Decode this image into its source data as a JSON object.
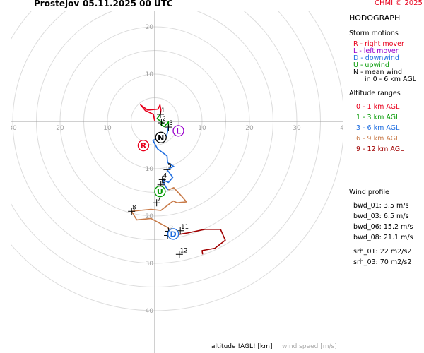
{
  "header": {
    "station": "Prostejov",
    "datetime": "05.11.2025 00 UTC",
    "copyright": "CHMI © 2025"
  },
  "legend": {
    "title": "HODOGRAPH",
    "storm_motions_title": "Storm motions",
    "storm_motions": [
      {
        "text": "R - right mover",
        "color": "#e8001c"
      },
      {
        "text": "L - left mover",
        "color": "#9900cc"
      },
      {
        "text": "D - downwind",
        "color": "#1f6ee0"
      },
      {
        "text": "U - upwind",
        "color": "#009900"
      },
      {
        "text": "N - mean wind",
        "color": "#000000"
      },
      {
        "text": "in 0 - 6 km AGL",
        "color": "#000000"
      }
    ],
    "altitude_title": "Altitude ranges",
    "altitude_ranges": [
      {
        "text": "0 - 1 km AGL",
        "color": "#e8001c"
      },
      {
        "text": "1 - 3 km AGL",
        "color": "#009900"
      },
      {
        "text": "3 - 6 km AGL",
        "color": "#1f6ee0"
      },
      {
        "text": "6 - 9 km AGL",
        "color": "#c87a48"
      },
      {
        "text": "9 - 12 km AGL",
        "color": "#a00000"
      }
    ],
    "wind_profile_title": "Wind profile",
    "wind_profile": [
      "bwd_01: 3.5 m/s",
      "bwd_03: 6.5 m/s",
      "bwd_06: 15.2 m/s",
      "bwd_08: 21.1 m/s",
      "srh_01: 22 m2/s2",
      "srh_03: 70 m2/s2"
    ]
  },
  "footer": {
    "altitude_label": "altitude !AGL! [km]",
    "wind_speed_label": "wind speed [m/s]"
  },
  "chart_data": {
    "type": "line",
    "title": "HODOGRAPH",
    "ring_spacing": 5,
    "max_ring": 40,
    "ring_labels_positive": [
      "10",
      "20"
    ],
    "ring_labels_negative": [
      "10",
      "20",
      "30",
      "40"
    ],
    "x_axis_labels": [
      "40",
      "30",
      "20",
      "10",
      "10",
      "20",
      "30",
      "40"
    ],
    "series": [
      {
        "range": "0 - 1 km AGL",
        "color": "#e8001c",
        "points": [
          [
            0,
            0
          ],
          [
            -0.3,
            1.5
          ],
          [
            -2.0,
            2.3
          ],
          [
            -3.0,
            3.5
          ],
          [
            -1.5,
            2.4
          ],
          [
            0.7,
            2.6
          ],
          [
            1.1,
            3.5
          ],
          [
            1.3,
            2.4
          ],
          [
            1.2,
            1.5
          ]
        ]
      },
      {
        "range": "1 - 3 km AGL",
        "color": "#009900",
        "points": [
          [
            1.2,
            1.5
          ],
          [
            0.5,
            0.6
          ],
          [
            1.8,
            -0.4
          ],
          [
            1.2,
            -0.6
          ],
          [
            2.0,
            -1.1
          ],
          [
            2.9,
            -0.1
          ],
          [
            2.9,
            -1.2
          ]
        ]
      },
      {
        "range": "3 - 6 km AGL",
        "color": "#1f6ee0",
        "points": [
          [
            2.9,
            -1.2
          ],
          [
            2.5,
            -3.1
          ],
          [
            -0.4,
            -4.0
          ],
          [
            0.6,
            -5.8
          ],
          [
            2.6,
            -7.3
          ],
          [
            2.7,
            -8.7
          ],
          [
            4.0,
            -9.5
          ],
          [
            2.6,
            -10.2
          ],
          [
            3.8,
            -11.8
          ],
          [
            2.9,
            -12.9
          ],
          [
            1.6,
            -12.3
          ],
          [
            2.3,
            -13.8
          ],
          [
            2.9,
            -14.5
          ]
        ]
      },
      {
        "range": "6 - 9 km AGL",
        "color": "#c87a48",
        "points": [
          [
            2.9,
            -14.5
          ],
          [
            4.0,
            -14.0
          ],
          [
            5.5,
            -15.6
          ],
          [
            6.7,
            -17.0
          ],
          [
            4.7,
            -17.2
          ],
          [
            3.9,
            -16.8
          ],
          [
            1.3,
            -18.8
          ],
          [
            -0.8,
            -18.6
          ],
          [
            -3.2,
            -18.8
          ],
          [
            -4.9,
            -19.0
          ],
          [
            -3.8,
            -20.8
          ],
          [
            -0.8,
            -20.5
          ],
          [
            2.7,
            -22.4
          ],
          [
            4.4,
            -24.2
          ],
          [
            5.0,
            -23.9
          ]
        ]
      },
      {
        "range": "9 - 12 km AGL",
        "color": "#a00000",
        "points": [
          [
            5.0,
            -23.9
          ],
          [
            6.8,
            -23.6
          ],
          [
            10.6,
            -22.8
          ],
          [
            13.9,
            -22.8
          ],
          [
            14.9,
            -25.1
          ],
          [
            12.7,
            -26.8
          ],
          [
            10.0,
            -27.3
          ],
          [
            10.1,
            -28.1
          ]
        ]
      }
    ],
    "markers": [
      {
        "label": "1",
        "point": [
          1.2,
          1.5
        ]
      },
      {
        "label": "2",
        "point": [
          1.4,
          -0.3
        ]
      },
      {
        "label": "3",
        "point": [
          2.9,
          -1.2
        ]
      },
      {
        "label": "4",
        "point": [
          1.6,
          -12.3
        ]
      },
      {
        "label": "5",
        "point": [
          2.6,
          -10.2
        ]
      },
      {
        "label": "6",
        "point": [
          1.3,
          -13.4
        ]
      },
      {
        "label": "7",
        "point": [
          0.4,
          -17.2
        ]
      },
      {
        "label": "8",
        "point": [
          -4.9,
          -19.0
        ]
      },
      {
        "label": "9",
        "point": [
          2.9,
          -23.2
        ]
      },
      {
        "label": "10",
        "point": [
          2.7,
          -24.1
        ]
      },
      {
        "label": "11",
        "point": [
          5.4,
          -23.1
        ]
      },
      {
        "label": "12",
        "point": [
          5.2,
          -28.1
        ]
      }
    ],
    "storm_motions": [
      {
        "label": "R",
        "point": [
          -2.4,
          -5.1
        ],
        "color": "#e8001c"
      },
      {
        "label": "L",
        "point": [
          5.0,
          -2.0
        ],
        "color": "#9900cc"
      },
      {
        "label": "D",
        "point": [
          3.9,
          -23.8
        ],
        "color": "#1f6ee0"
      },
      {
        "label": "U",
        "point": [
          1.1,
          -14.8
        ],
        "color": "#009900"
      },
      {
        "label": "N",
        "point": [
          1.3,
          -3.4
        ],
        "color": "#000000"
      }
    ]
  }
}
